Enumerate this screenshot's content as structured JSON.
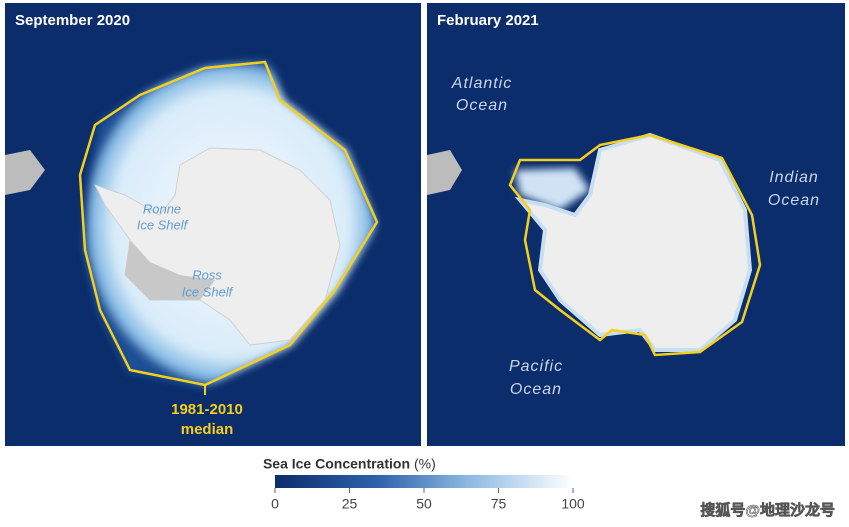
{
  "panels": [
    {
      "title": "September 2020",
      "labels": [
        {
          "lines": [
            "Ronne",
            "Ice Shelf"
          ]
        },
        {
          "lines": [
            "Ross",
            "Ice Shelf"
          ]
        },
        {
          "lines": [
            "1981-2010",
            "median"
          ]
        }
      ]
    },
    {
      "title": "February 2021",
      "labels": [
        {
          "lines": [
            "Atlantic",
            "Ocean"
          ]
        },
        {
          "lines": [
            "Indian",
            "Ocean"
          ]
        },
        {
          "lines": [
            "Pacific",
            "Ocean"
          ]
        }
      ]
    }
  ],
  "colorbar": {
    "title": "Sea Ice Concentration",
    "unit": "(%)",
    "lim": [
      0,
      100
    ],
    "ticks": [
      0,
      25,
      50,
      75,
      100
    ]
  },
  "watermark": "搜狐号@地理沙龙号"
}
